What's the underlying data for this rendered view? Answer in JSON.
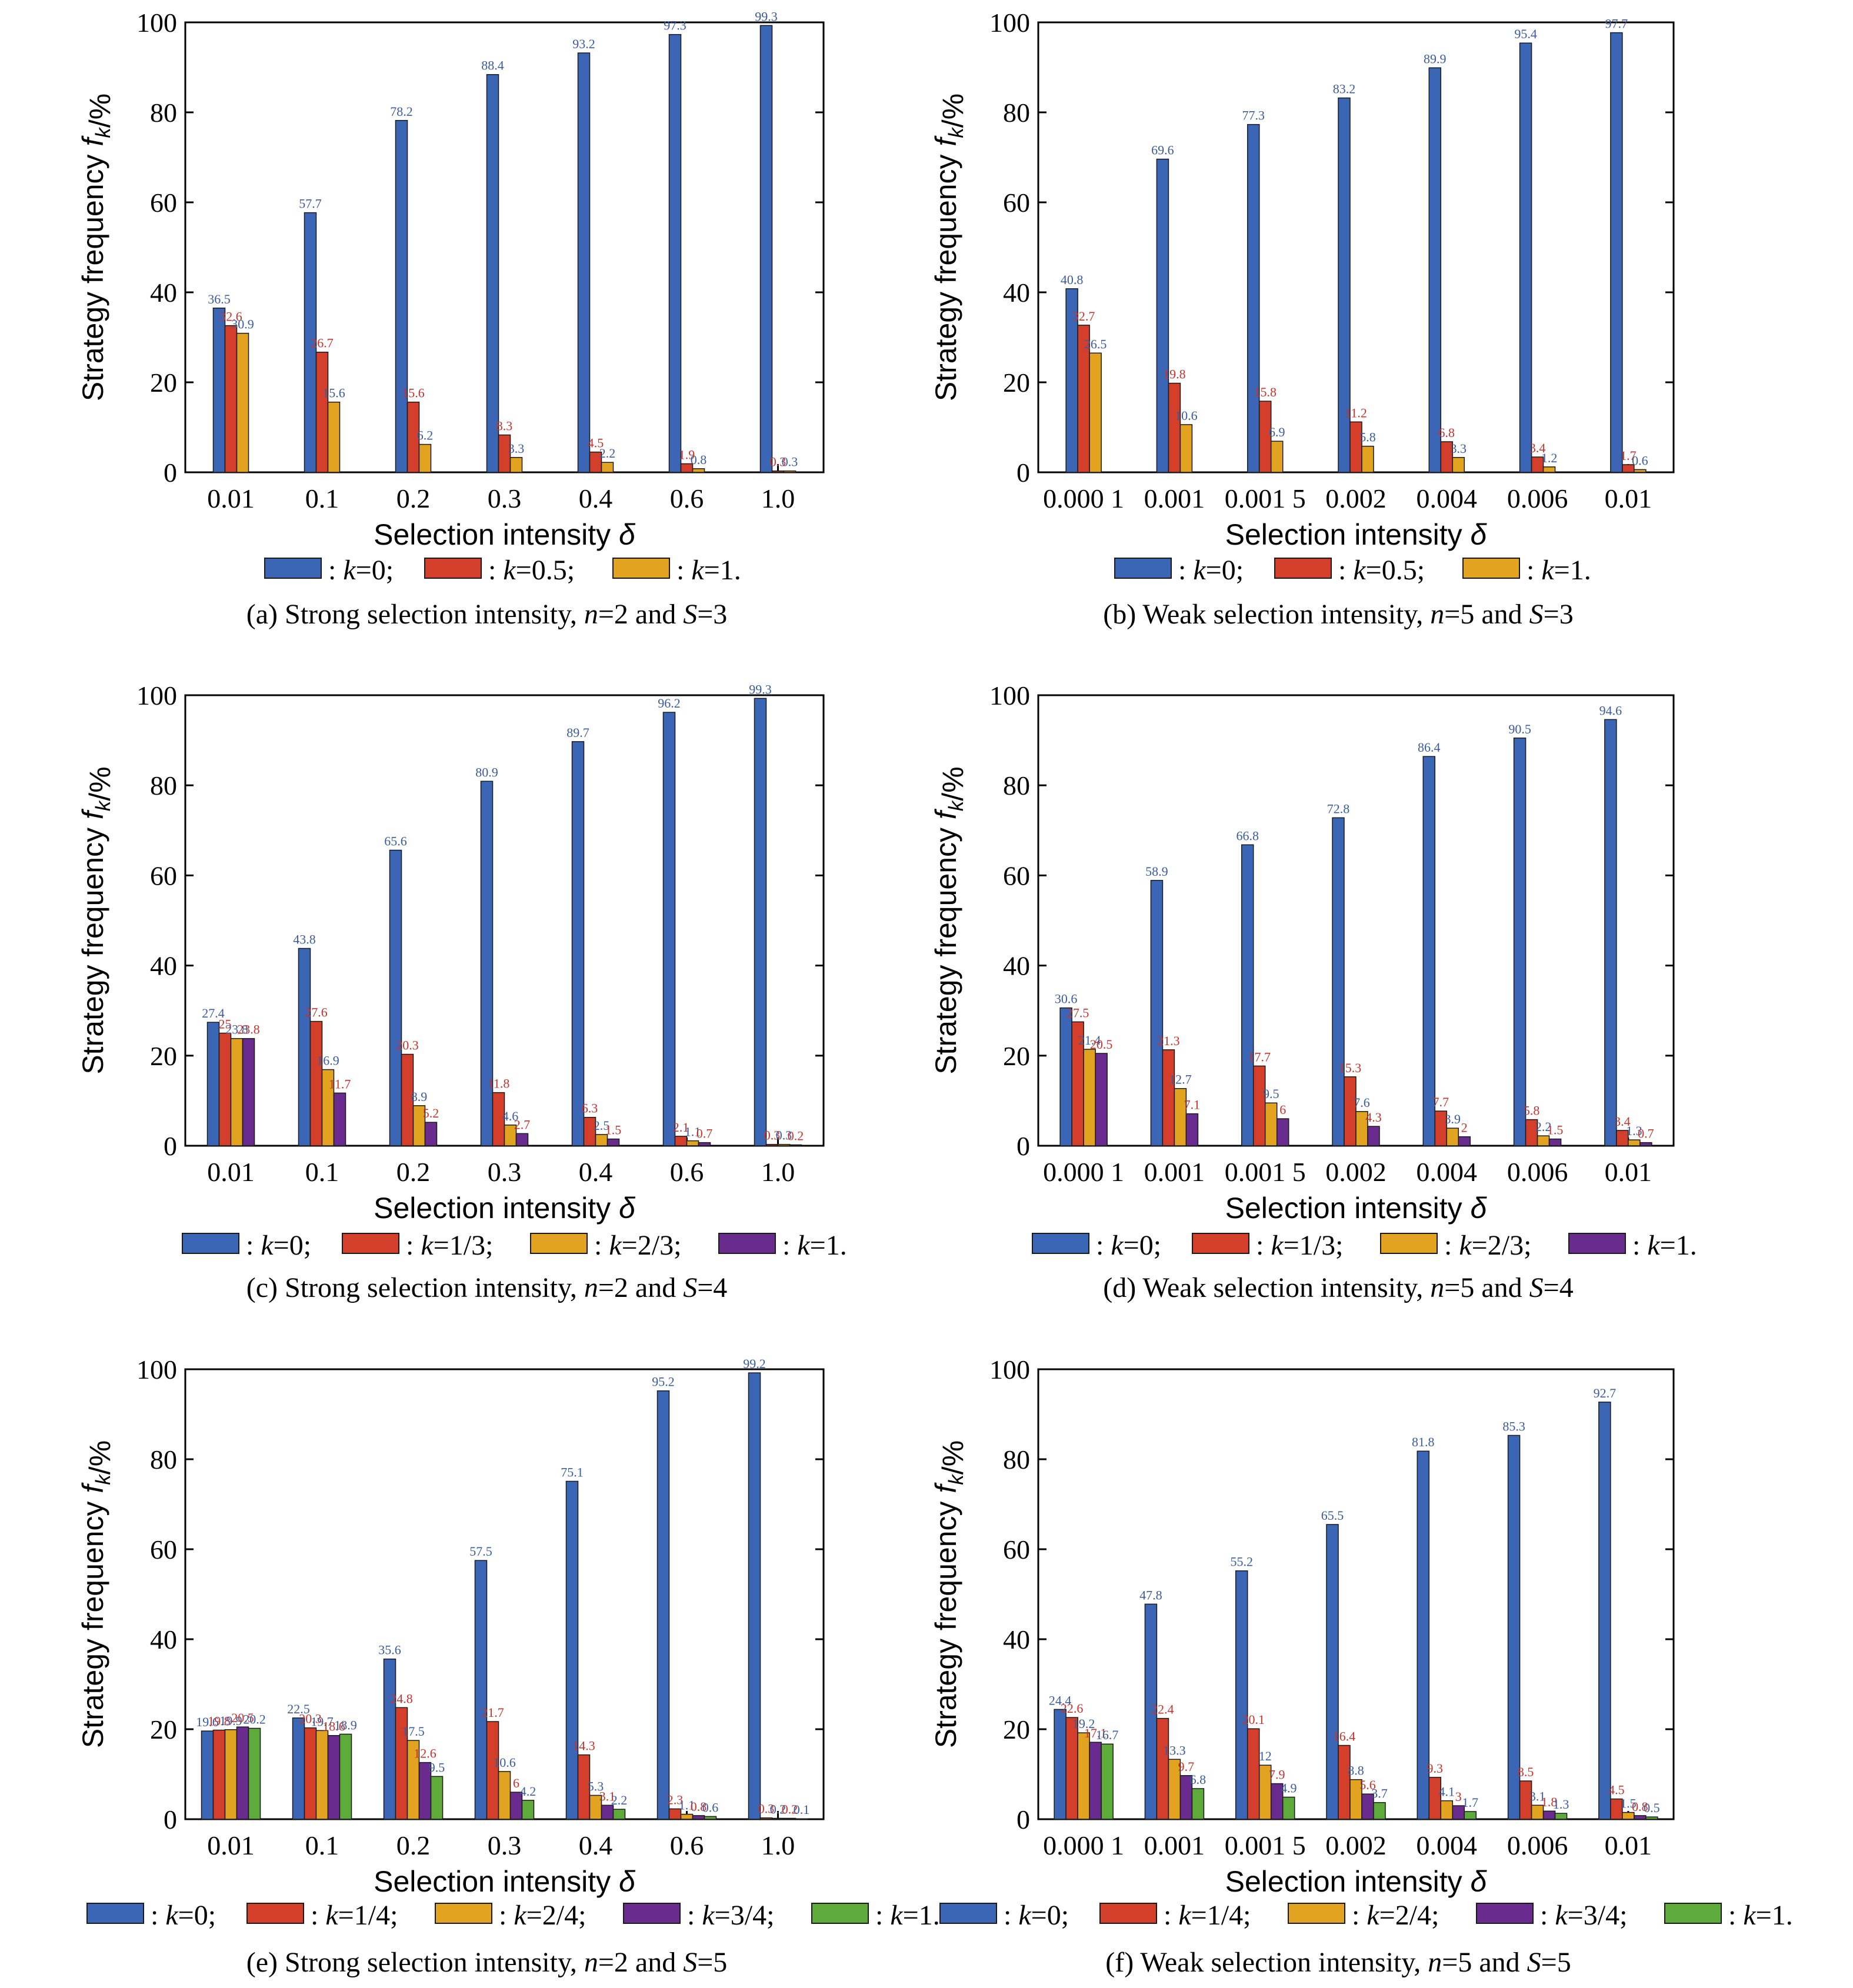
{
  "colors": {
    "blue": "#3a66b5",
    "red": "#d33f2a",
    "orange": "#e2a321",
    "purple": "#6a2b8e",
    "green": "#5eaa3a",
    "label_blue": "#3a5ba0",
    "label_red": "#c8322a"
  },
  "chart_data": [
    {
      "type": "bar",
      "panel": "a",
      "caption": "(a) Strong selection intensity, n=2 and S=3",
      "xlabel": "Selection intensity δ",
      "ylabel": "Strategy frequency f_k/%",
      "ylim": [
        0,
        100
      ],
      "yticks": [
        0,
        20,
        40,
        60,
        80,
        100
      ],
      "categories": [
        "0.01",
        "0.1",
        "0.2",
        "0.3",
        "0.4",
        "0.6",
        "1.0"
      ],
      "series": [
        {
          "name": "k=0",
          "color": "blue",
          "values": [
            36.5,
            57.7,
            78.2,
            88.4,
            93.2,
            97.3,
            99.3
          ]
        },
        {
          "name": "k=0.5",
          "color": "red",
          "values": [
            32.6,
            26.7,
            15.6,
            8.3,
            4.5,
            1.9,
            0.3
          ]
        },
        {
          "name": "k=1",
          "color": "orange",
          "values": [
            30.9,
            15.6,
            6.2,
            3.3,
            2.2,
            0.8,
            0.3
          ]
        }
      ],
      "data_labels": [
        [
          "36.5",
          "32.6",
          "30.9"
        ],
        [
          "57.7",
          "26.7",
          "15.6"
        ],
        [
          "78.2",
          "15.6",
          "6.2"
        ],
        [
          "88.4",
          "8.3",
          "3.3"
        ],
        [
          "93.2",
          "4.5",
          "2.2"
        ],
        [
          "97.3",
          "1.9",
          "0.8"
        ],
        [
          "99.3",
          "0.3",
          "0.3"
        ]
      ],
      "legend": [
        "k=0;",
        "k=0.5;",
        "k=1."
      ]
    },
    {
      "type": "bar",
      "panel": "b",
      "caption": "(b) Weak selection intensity, n=5 and S=3",
      "xlabel": "Selection intensity δ",
      "ylabel": "Strategy frequency f_k/%",
      "ylim": [
        0,
        100
      ],
      "yticks": [
        0,
        20,
        40,
        60,
        80,
        100
      ],
      "categories": [
        "0.000 1",
        "0.001",
        "0.001 5",
        "0.002",
        "0.004",
        "0.006",
        "0.01"
      ],
      "series": [
        {
          "name": "k=0",
          "color": "blue",
          "values": [
            40.8,
            69.6,
            77.3,
            83.2,
            89.9,
            95.4,
            97.7
          ]
        },
        {
          "name": "k=0.5",
          "color": "red",
          "values": [
            32.7,
            19.8,
            15.8,
            11.2,
            6.8,
            3.4,
            1.7
          ]
        },
        {
          "name": "k=1",
          "color": "orange",
          "values": [
            26.5,
            10.6,
            6.9,
            5.8,
            3.3,
            1.2,
            0.6
          ]
        }
      ],
      "data_labels": [
        [
          "40.8",
          "32.7",
          "26.5"
        ],
        [
          "69.6",
          "19.8",
          "10.6"
        ],
        [
          "77.3",
          "15.8",
          "6.9"
        ],
        [
          "83.2",
          "11.2",
          "5.8"
        ],
        [
          "89.9",
          "6.8",
          "3.3"
        ],
        [
          "95.4",
          "3.4",
          "1.2"
        ],
        [
          "97.7",
          "1.7",
          "0.6"
        ]
      ],
      "legend": [
        "k=0;",
        "k=0.5;",
        "k=1."
      ]
    },
    {
      "type": "bar",
      "panel": "c",
      "caption": "(c) Strong selection intensity, n=2 and S=4",
      "xlabel": "Selection intensity δ",
      "ylabel": "Strategy frequency f_k/%",
      "ylim": [
        0,
        100
      ],
      "yticks": [
        0,
        20,
        40,
        60,
        80,
        100
      ],
      "categories": [
        "0.01",
        "0.1",
        "0.2",
        "0.3",
        "0.4",
        "0.6",
        "1.0"
      ],
      "series": [
        {
          "name": "k=0",
          "color": "blue",
          "values": [
            27.4,
            43.8,
            65.6,
            80.9,
            89.7,
            96.2,
            99.3
          ]
        },
        {
          "name": "k=1/3",
          "color": "red",
          "values": [
            25,
            27.6,
            20.3,
            11.8,
            6.3,
            2.1,
            0.3
          ]
        },
        {
          "name": "k=2/3",
          "color": "orange",
          "values": [
            23.8,
            16.9,
            8.9,
            4.6,
            2.5,
            1.1,
            0.3
          ]
        },
        {
          "name": "k=1",
          "color": "purple",
          "values": [
            23.8,
            11.7,
            5.2,
            2.7,
            1.5,
            0.7,
            0.2
          ]
        }
      ],
      "data_labels": [
        [
          "27.4",
          "25",
          "23.8",
          "23.8"
        ],
        [
          "43.8",
          "27.6",
          "16.9",
          "11.7"
        ],
        [
          "65.6",
          "20.3",
          "8.9",
          "5.2"
        ],
        [
          "80.9",
          "11.8",
          "4.6",
          "2.7"
        ],
        [
          "89.7",
          "6.3",
          "2.5",
          "1.5"
        ],
        [
          "96.2",
          "2.1",
          "1.1",
          "0.7"
        ],
        [
          "99.3",
          "0.3",
          "0.3",
          "0.2"
        ]
      ],
      "legend": [
        "k=0;",
        "k=1/3;",
        "k=2/3;",
        "k=1."
      ]
    },
    {
      "type": "bar",
      "panel": "d",
      "caption": "(d) Weak selection intensity, n=5 and S=4",
      "xlabel": "Selection intensity δ",
      "ylabel": "Strategy frequency f_k/%",
      "ylim": [
        0,
        100
      ],
      "yticks": [
        0,
        20,
        40,
        60,
        80,
        100
      ],
      "categories": [
        "0.000 1",
        "0.001",
        "0.001 5",
        "0.002",
        "0.004",
        "0.006",
        "0.01"
      ],
      "series": [
        {
          "name": "k=0",
          "color": "blue",
          "values": [
            30.6,
            58.9,
            66.8,
            72.8,
            86.4,
            90.5,
            94.6
          ]
        },
        {
          "name": "k=1/3",
          "color": "red",
          "values": [
            27.5,
            21.3,
            17.7,
            15.3,
            7.7,
            5.8,
            3.4
          ]
        },
        {
          "name": "k=2/3",
          "color": "orange",
          "values": [
            21.4,
            12.7,
            9.5,
            7.6,
            3.9,
            2.2,
            1.3
          ]
        },
        {
          "name": "k=1",
          "color": "purple",
          "values": [
            20.5,
            7.1,
            6,
            4.3,
            2,
            1.5,
            0.7
          ]
        }
      ],
      "data_labels": [
        [
          "30.6",
          "27.5",
          "21.4",
          "20.5"
        ],
        [
          "58.9",
          "21.3",
          "12.7",
          "7.1"
        ],
        [
          "66.8",
          "17.7",
          "9.5",
          "6"
        ],
        [
          "72.8",
          "15.3",
          "7.6",
          "4.3"
        ],
        [
          "86.4",
          "7.7",
          "3.9",
          "2"
        ],
        [
          "90.5",
          "5.8",
          "2.2",
          "1.5"
        ],
        [
          "94.6",
          "3.4",
          "1.3",
          "0.7"
        ]
      ],
      "legend": [
        "k=0;",
        "k=1/3;",
        "k=2/3;",
        "k=1."
      ]
    },
    {
      "type": "bar",
      "panel": "e",
      "caption": "(e) Strong selection intensity, n=2 and S=5",
      "xlabel": "Selection intensity δ",
      "ylabel": "Strategy frequency f_k/%",
      "ylim": [
        0,
        100
      ],
      "yticks": [
        0,
        20,
        40,
        60,
        80,
        100
      ],
      "categories": [
        "0.01",
        "0.1",
        "0.2",
        "0.3",
        "0.4",
        "0.6",
        "1.0"
      ],
      "series": [
        {
          "name": "k=0",
          "color": "blue",
          "values": [
            19.6,
            22.5,
            35.6,
            57.5,
            75.1,
            95.2,
            99.2
          ]
        },
        {
          "name": "k=1/4",
          "color": "red",
          "values": [
            19.8,
            20.3,
            24.8,
            21.7,
            14.3,
            2.3,
            0.3
          ]
        },
        {
          "name": "k=2/4",
          "color": "orange",
          "values": [
            19.9,
            19.7,
            17.5,
            10.6,
            5.3,
            1.1,
            0.2
          ]
        },
        {
          "name": "k=3/4",
          "color": "purple",
          "values": [
            20.5,
            18.6,
            12.6,
            6,
            3.1,
            0.8,
            0.2
          ]
        },
        {
          "name": "k=1",
          "color": "green",
          "values": [
            20.2,
            18.9,
            9.5,
            4.2,
            2.2,
            0.6,
            0.1
          ]
        }
      ],
      "data_labels": [
        [
          "19.6",
          "19.8",
          "19.9",
          "20.5",
          "20.2"
        ],
        [
          "22.5",
          "20.3",
          "19.7",
          "18.6",
          "18.9"
        ],
        [
          "35.6",
          "24.8",
          "17.5",
          "12.6",
          "9.5"
        ],
        [
          "57.5",
          "21.7",
          "10.6",
          "6",
          "4.2"
        ],
        [
          "75.1",
          "14.3",
          "5.3",
          "3.1",
          "2.2"
        ],
        [
          "95.2",
          "2.3",
          "1.1",
          "0.8",
          "0.6"
        ],
        [
          "99.2",
          "0.3",
          "0.2",
          "0.2",
          "0.1"
        ]
      ],
      "legend": [
        "k=0;",
        "k=1/4;",
        "k=2/4;",
        "k=3/4;",
        "k=1."
      ]
    },
    {
      "type": "bar",
      "panel": "f",
      "caption": "(f) Weak selection intensity, n=5 and S=5",
      "xlabel": "Selection intensity δ",
      "ylabel": "Strategy frequency f_k/%",
      "ylim": [
        0,
        100
      ],
      "yticks": [
        0,
        20,
        40,
        60,
        80,
        100
      ],
      "categories": [
        "0.000 1",
        "0.001",
        "0.001 5",
        "0.002",
        "0.004",
        "0.006",
        "0.01"
      ],
      "series": [
        {
          "name": "k=0",
          "color": "blue",
          "values": [
            24.4,
            47.8,
            55.2,
            65.5,
            81.8,
            85.3,
            92.7
          ]
        },
        {
          "name": "k=1/4",
          "color": "red",
          "values": [
            22.6,
            22.4,
            20.1,
            16.4,
            9.3,
            8.5,
            4.5
          ]
        },
        {
          "name": "k=2/4",
          "color": "orange",
          "values": [
            19.2,
            13.3,
            12,
            8.8,
            4.1,
            3.1,
            1.5
          ]
        },
        {
          "name": "k=3/4",
          "color": "purple",
          "values": [
            17.1,
            9.7,
            7.9,
            5.6,
            3,
            1.8,
            0.8
          ]
        },
        {
          "name": "k=1",
          "color": "green",
          "values": [
            16.7,
            6.8,
            4.9,
            3.7,
            1.7,
            1.3,
            0.5
          ]
        }
      ],
      "data_labels": [
        [
          "24.4",
          "22.6",
          "19.2",
          "17.1",
          "16.7"
        ],
        [
          "47.8",
          "22.4",
          "13.3",
          "9.7",
          "6.8"
        ],
        [
          "55.2",
          "20.1",
          "12",
          "7.9",
          "4.9"
        ],
        [
          "65.5",
          "16.4",
          "8.8",
          "5.6",
          "3.7"
        ],
        [
          "81.8",
          "9.3",
          "4.1",
          "3",
          "1.7"
        ],
        [
          "85.3",
          "8.5",
          "3.1",
          "1.8",
          "1.3"
        ],
        [
          "92.7",
          "4.5",
          "1.5",
          "0.8",
          "0.5"
        ]
      ],
      "legend": [
        "k=0;",
        "k=1/4;",
        "k=2/4;",
        "k=3/4;",
        "k=1."
      ]
    }
  ]
}
